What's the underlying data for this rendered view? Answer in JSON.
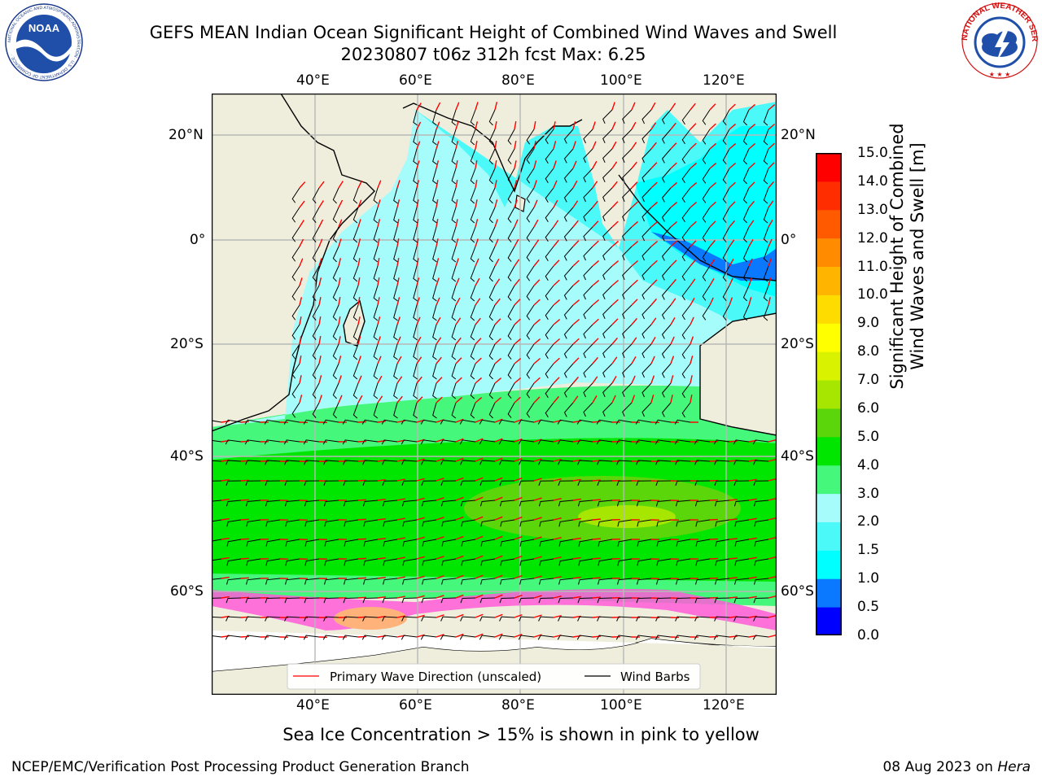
{
  "title": {
    "line1": "GEFS MEAN Indian Ocean Significant Height of Combined Wind Waves and Swell",
    "line2": "20230807 t06z 312h fcst   Max: 6.25"
  },
  "axes": {
    "lon_ticks": [
      "40°E",
      "60°E",
      "80°E",
      "100°E",
      "120°E"
    ],
    "lat_ticks_left": [
      "20°N",
      "0°",
      "20°S",
      "40°S",
      "60°S"
    ],
    "lat_ticks_right": [
      "20°N",
      "0°",
      "20°S",
      "40°S",
      "60°S"
    ]
  },
  "legend": {
    "wave_label": "Primary Wave Direction (unscaled)",
    "barb_label": "Wind Barbs",
    "wave_color": "#ff0000",
    "barb_color": "#000000"
  },
  "colorbar": {
    "title_line1": "Significant Height of Combined",
    "title_line2": "Wind Waves and Swell [m]",
    "levels": [
      "0.0",
      "0.5",
      "1.0",
      "1.5",
      "2.0",
      "3.0",
      "4.0",
      "5.0",
      "6.0",
      "7.0",
      "8.0",
      "9.0",
      "10.0",
      "11.0",
      "12.0",
      "13.0",
      "14.0",
      "15.0"
    ],
    "colors": [
      "#0000ff",
      "#0a78ff",
      "#00ffff",
      "#4cf9f9",
      "#a6fbfb",
      "#45f77a",
      "#00e600",
      "#5ad60a",
      "#a6e600",
      "#d9f200",
      "#ffff00",
      "#ffdc00",
      "#ffb400",
      "#ff8c00",
      "#ff5a00",
      "#ff2d00",
      "#ff0000"
    ]
  },
  "map": {
    "land_color": "#efeedc",
    "ice_note": "Sea Ice Concentration > 15% is shown in pink to yellow"
  },
  "footer": {
    "left": "NCEP/EMC/Verification Post Processing Product Generation Branch",
    "right_date": "08 Aug 2023 on ",
    "right_host": "Hera"
  },
  "logos": {
    "noaa_text": "NOAA",
    "noaa_ring": "NATIONAL OCEANIC AND ATMOSPHERIC ADMINISTRATION · U.S. DEPARTMENT OF COMMERCE ·",
    "nws_ring": "NATIONAL WEATHER SERVICE"
  }
}
